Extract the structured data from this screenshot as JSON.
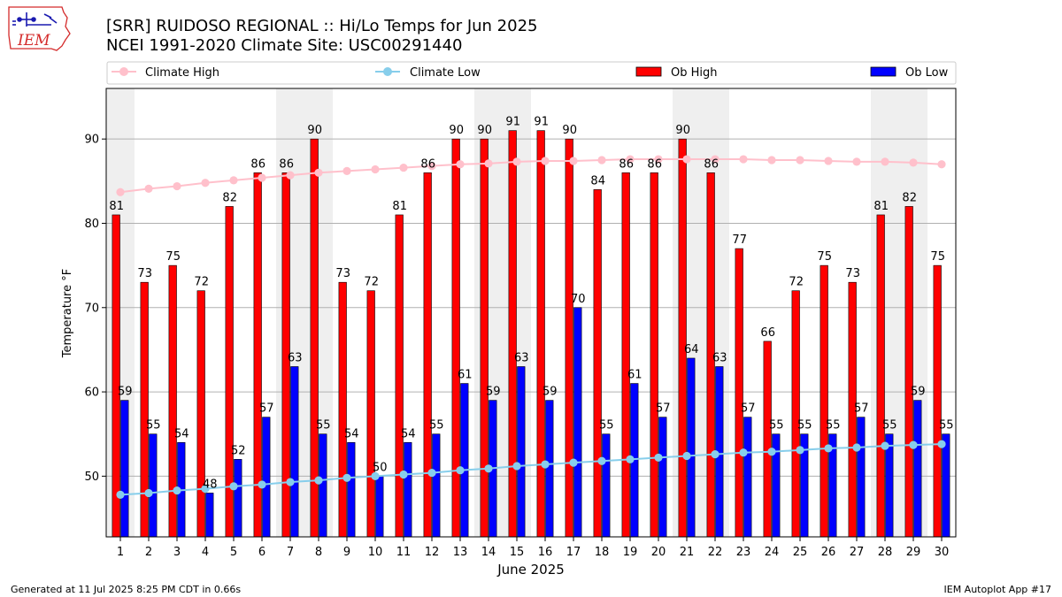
{
  "logo": {
    "text": "IEM"
  },
  "footer": {
    "generated": "Generated at 11 Jul 2025 8:25 PM CDT in 0.66s",
    "app": "IEM Autoplot App #17"
  },
  "chart_data": {
    "type": "bar",
    "title": "[SRR] RUIDOSO REGIONAL :: Hi/Lo Temps for Jun 2025",
    "subtitle": "NCEI 1991-2020 Climate Site: USC00291440",
    "xlabel": "June 2025",
    "ylabel": "Temperature °F",
    "ylim": [
      42.8,
      96
    ],
    "yticks": [
      50,
      60,
      70,
      80,
      90
    ],
    "grid": true,
    "legend_position": "top",
    "x": [
      "1",
      "2",
      "3",
      "4",
      "5",
      "6",
      "7",
      "8",
      "9",
      "10",
      "11",
      "12",
      "13",
      "14",
      "15",
      "16",
      "17",
      "18",
      "19",
      "20",
      "21",
      "22",
      "23",
      "24",
      "25",
      "26",
      "27",
      "28",
      "29",
      "30"
    ],
    "weekend_days": [
      1,
      7,
      8,
      14,
      15,
      21,
      22,
      28,
      29
    ],
    "series": [
      {
        "name": "Climate High",
        "kind": "line",
        "color": "#ffc0cb",
        "values": [
          83.7,
          84.1,
          84.4,
          84.8,
          85.1,
          85.4,
          85.7,
          86.0,
          86.2,
          86.4,
          86.6,
          86.8,
          87.0,
          87.1,
          87.3,
          87.4,
          87.4,
          87.5,
          87.6,
          87.6,
          87.6,
          87.6,
          87.6,
          87.5,
          87.5,
          87.4,
          87.3,
          87.3,
          87.2,
          87.0
        ]
      },
      {
        "name": "Climate Low",
        "kind": "line",
        "color": "#87ceeb",
        "values": [
          47.8,
          48.0,
          48.3,
          48.5,
          48.8,
          49.0,
          49.3,
          49.5,
          49.8,
          50.0,
          50.2,
          50.4,
          50.7,
          50.9,
          51.2,
          51.4,
          51.6,
          51.8,
          52.0,
          52.2,
          52.4,
          52.6,
          52.8,
          52.9,
          53.1,
          53.3,
          53.4,
          53.6,
          53.7,
          53.8
        ]
      },
      {
        "name": "Ob High",
        "kind": "bar",
        "color": "#ff0000",
        "values": [
          81,
          73,
          75,
          72,
          82,
          86,
          86,
          90,
          73,
          72,
          81,
          86,
          90,
          90,
          91,
          91,
          90,
          84,
          86,
          86,
          90,
          86,
          77,
          66,
          72,
          75,
          73,
          81,
          82,
          75
        ]
      },
      {
        "name": "Ob Low",
        "kind": "bar",
        "color": "#0000ff",
        "values": [
          59,
          55,
          54,
          48,
          52,
          57,
          63,
          55,
          54,
          50,
          54,
          55,
          61,
          59,
          63,
          59,
          70,
          55,
          61,
          57,
          64,
          63,
          57,
          55,
          55,
          55,
          57,
          55,
          59,
          55
        ]
      }
    ]
  }
}
